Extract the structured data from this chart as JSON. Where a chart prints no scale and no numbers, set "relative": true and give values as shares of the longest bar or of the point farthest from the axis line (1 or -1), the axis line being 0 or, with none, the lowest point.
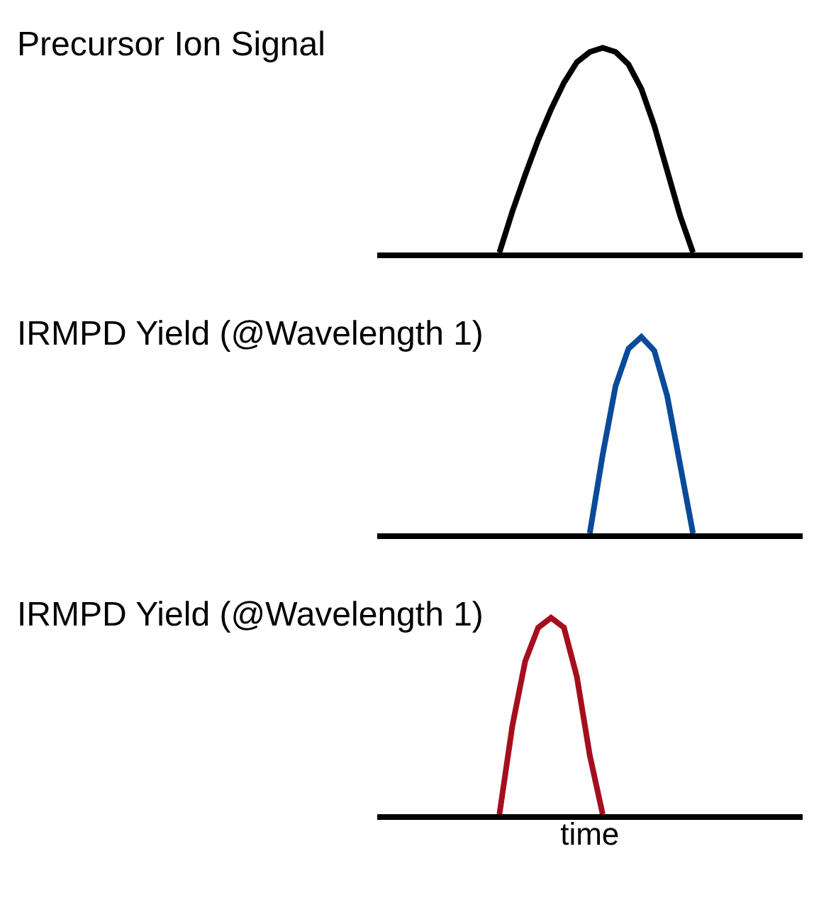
{
  "chart_data": [
    {
      "type": "line",
      "title": "Precursor Ion Signal",
      "relative": true,
      "categories": [
        null,
        null,
        null,
        null,
        null,
        null,
        null,
        null,
        null,
        null,
        null,
        null,
        null,
        null,
        null,
        null,
        null,
        null,
        null,
        null,
        null,
        null,
        null,
        null,
        null,
        null,
        null,
        null,
        null,
        null,
        null,
        null,
        null
      ],
      "series": [
        {
          "color": "#000000",
          "values": [
            null,
            null,
            null,
            null,
            null,
            null,
            null,
            null,
            null,
            0,
            0.2,
            0.38,
            0.55,
            0.7,
            0.83,
            0.93,
            0.98,
            1,
            0.98,
            0.92,
            0.8,
            0.62,
            0.4,
            0.18,
            0,
            null,
            null,
            null,
            null,
            null,
            null,
            null,
            null
          ]
        }
      ]
    },
    {
      "type": "line",
      "title": "IRMPD Yield (@Wavelength 1)",
      "relative": true,
      "categories": [
        null,
        null,
        null,
        null,
        null,
        null,
        null,
        null,
        null,
        null,
        null,
        null,
        null,
        null,
        null,
        null,
        null,
        null,
        null,
        null,
        null,
        null,
        null,
        null,
        null,
        null,
        null,
        null,
        null,
        null,
        null,
        null,
        null
      ],
      "series": [
        {
          "color": "#0a4a9a",
          "values": [
            null,
            null,
            null,
            null,
            null,
            null,
            null,
            null,
            null,
            null,
            null,
            null,
            null,
            null,
            null,
            null,
            0,
            0.4,
            0.75,
            0.94,
            1,
            0.93,
            0.7,
            0.35,
            0,
            null,
            null,
            null,
            null,
            null,
            null,
            null,
            null
          ]
        }
      ]
    },
    {
      "type": "line",
      "title": "IRMPD Yield (@Wavelength 1)",
      "xlabel": "time",
      "relative": true,
      "categories": [
        null,
        null,
        null,
        null,
        null,
        null,
        null,
        null,
        null,
        null,
        null,
        null,
        null,
        null,
        null,
        null,
        null,
        null,
        null,
        null,
        null,
        null,
        null,
        null,
        null,
        null,
        null,
        null,
        null,
        null,
        null,
        null,
        null
      ],
      "series": [
        {
          "color": "#a50e1e",
          "values": [
            null,
            null,
            null,
            null,
            null,
            null,
            null,
            null,
            null,
            0,
            0.45,
            0.78,
            0.95,
            1,
            0.95,
            0.7,
            0.3,
            0,
            null,
            null,
            null,
            null,
            null,
            null,
            null,
            null,
            null,
            null,
            null,
            null,
            null,
            null,
            null
          ]
        }
      ]
    }
  ]
}
